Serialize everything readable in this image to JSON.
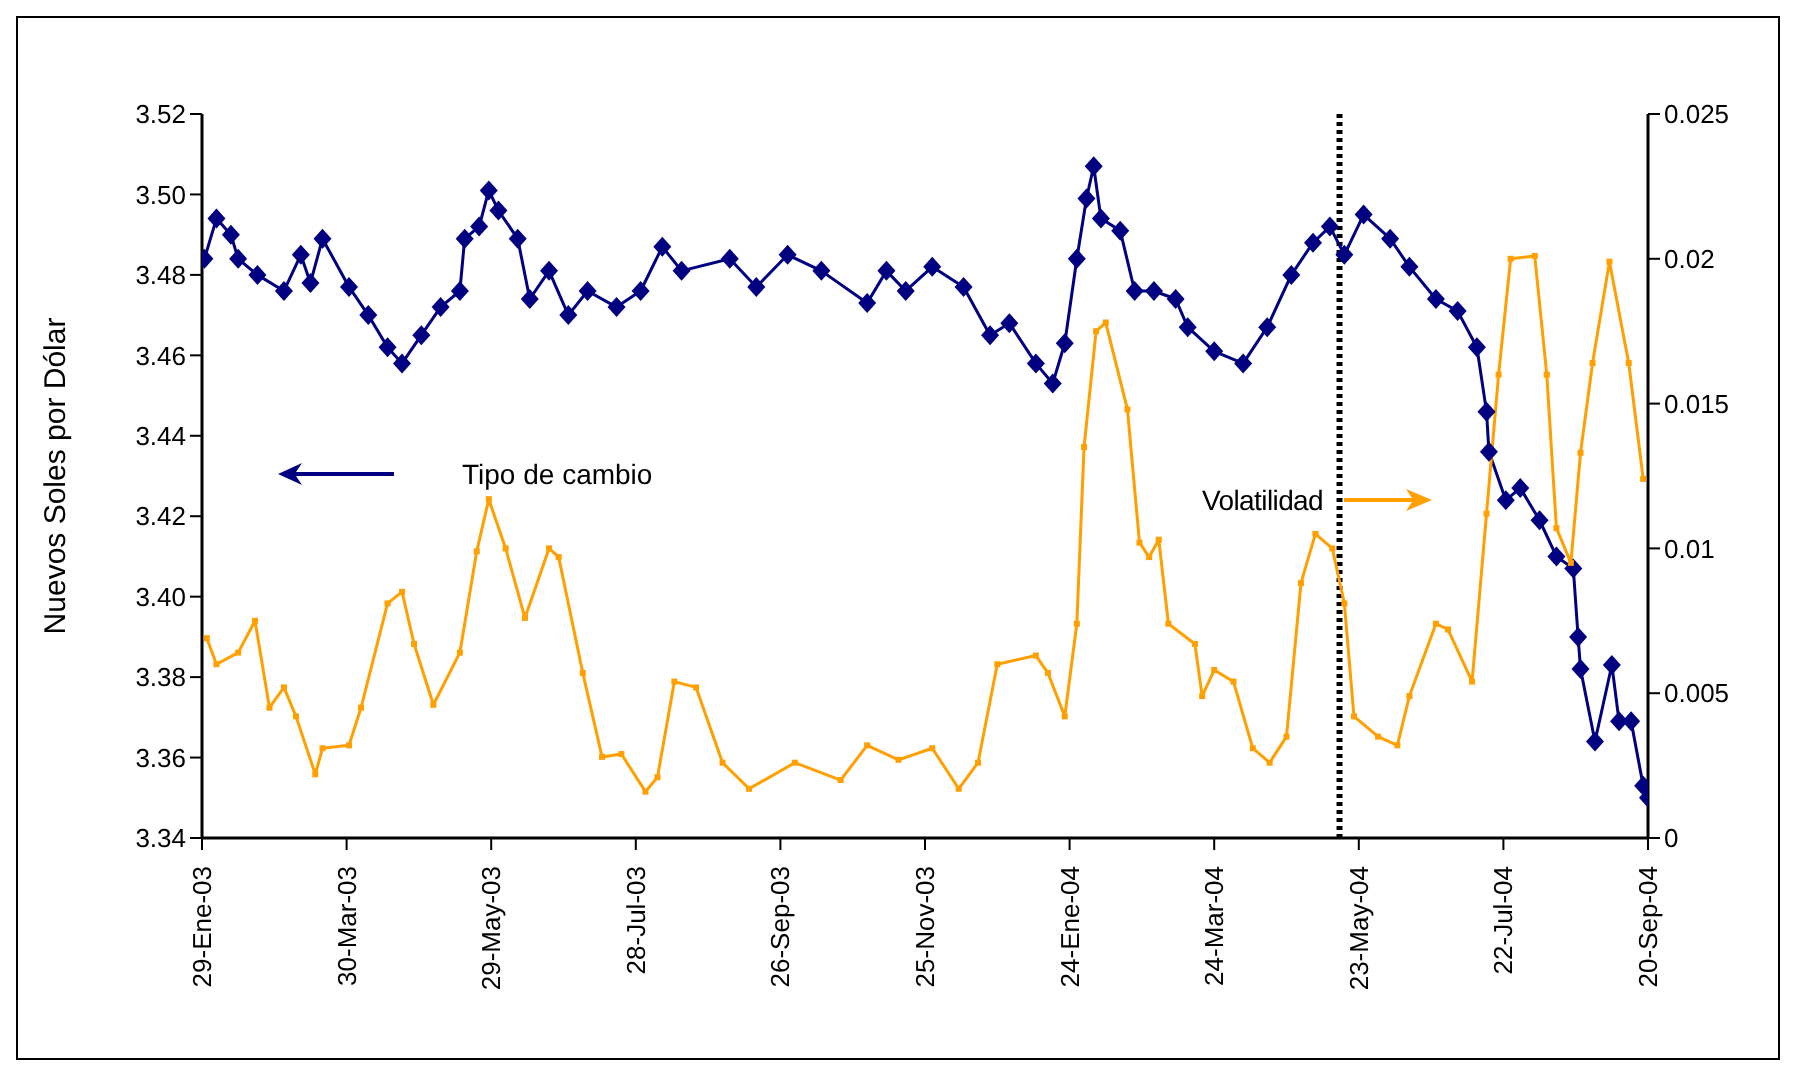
{
  "chart_data": {
    "type": "line",
    "ylabel": "Nuevos Soles por Dólar",
    "xlim": [
      "2003-01-29",
      "2004-09-20"
    ],
    "xticks": [
      {
        "value": "2003-01-29",
        "label": "29-Ene-03"
      },
      {
        "value": "2003-03-30",
        "label": "30-Mar-03"
      },
      {
        "value": "2003-05-29",
        "label": "29-May-03"
      },
      {
        "value": "2003-07-28",
        "label": "28-Jul-03"
      },
      {
        "value": "2003-09-26",
        "label": "26-Sep-03"
      },
      {
        "value": "2003-11-25",
        "label": "25-Nov-03"
      },
      {
        "value": "2004-01-24",
        "label": "24-Ene-04"
      },
      {
        "value": "2004-03-24",
        "label": "24-Mar-04"
      },
      {
        "value": "2004-05-23",
        "label": "23-May-04"
      },
      {
        "value": "2004-07-22",
        "label": "22-Jul-04"
      },
      {
        "value": "2004-09-20",
        "label": "20-Sep-04"
      }
    ],
    "ylim": [
      3.34,
      3.52
    ],
    "yticks": [
      3.34,
      3.36,
      3.38,
      {
        "value": 3.4,
        "label": "3.40"
      },
      3.42,
      3.44,
      3.46,
      3.48,
      {
        "value": 3.5,
        "label": "3.50"
      },
      3.52
    ],
    "y2lim": [
      0,
      0.025
    ],
    "y2ticks": [
      0,
      0.005,
      0.01,
      0.015,
      0.02,
      0.025
    ],
    "grid": false,
    "legend": false,
    "line_style": "solid",
    "series": [
      {
        "color": "#000080",
        "marker": "diamond",
        "x": [
          "2003-01-30",
          "2003-02-04",
          "2003-02-10",
          "2003-02-13",
          "2003-02-21",
          "2003-03-04",
          "2003-03-11",
          "2003-03-15",
          "2003-03-20",
          "2003-03-31",
          "2003-04-08",
          "2003-04-16",
          "2003-04-22",
          "2003-04-30",
          "2003-05-08",
          "2003-05-16",
          "2003-05-18",
          "2003-05-24",
          "2003-05-28",
          "2003-06-01",
          "2003-06-09",
          "2003-06-14",
          "2003-06-22",
          "2003-06-30",
          "2003-07-08",
          "2003-07-20",
          "2003-07-30",
          "2003-08-08",
          "2003-08-16",
          "2003-09-05",
          "2003-09-16",
          "2003-09-29",
          "2003-10-13",
          "2003-11-01",
          "2003-11-09",
          "2003-11-17",
          "2003-11-28",
          "2003-12-11",
          "2003-12-22",
          "2003-12-30",
          "2004-01-10",
          "2004-01-17",
          "2004-01-22",
          "2004-01-27",
          "2004-01-31",
          "2004-02-03",
          "2004-02-06",
          "2004-02-14",
          "2004-02-20",
          "2004-02-28",
          "2004-03-08",
          "2004-03-13",
          "2004-03-24",
          "2004-04-05",
          "2004-04-15",
          "2004-04-25",
          "2004-05-04",
          "2004-05-11",
          "2004-05-17",
          "2004-05-25",
          "2004-06-05",
          "2004-06-13",
          "2004-06-24",
          "2004-07-03",
          "2004-07-11",
          "2004-07-15",
          "2004-07-16",
          "2004-07-23",
          "2004-07-29",
          "2004-08-06",
          "2004-08-13",
          "2004-08-20",
          "2004-08-22",
          "2004-08-23",
          "2004-08-29",
          "2004-09-05",
          "2004-09-08",
          "2004-09-13",
          "2004-09-18",
          "2004-09-20"
        ],
        "values": [
          3.484,
          3.494,
          3.49,
          3.484,
          3.48,
          3.476,
          3.485,
          3.478,
          3.489,
          3.477,
          3.47,
          3.462,
          3.458,
          3.465,
          3.472,
          3.476,
          3.489,
          3.492,
          3.501,
          3.496,
          3.489,
          3.474,
          3.481,
          3.47,
          3.476,
          3.472,
          3.476,
          3.487,
          3.481,
          3.484,
          3.477,
          3.485,
          3.481,
          3.473,
          3.481,
          3.476,
          3.482,
          3.477,
          3.465,
          3.468,
          3.458,
          3.453,
          3.463,
          3.484,
          3.499,
          3.507,
          3.494,
          3.491,
          3.476,
          3.476,
          3.474,
          3.467,
          3.461,
          3.458,
          3.467,
          3.48,
          3.488,
          3.492,
          3.485,
          3.495,
          3.489,
          3.482,
          3.474,
          3.471,
          3.462,
          3.446,
          3.436,
          3.424,
          3.427,
          3.419,
          3.41,
          3.407,
          3.39,
          3.382,
          3.364,
          3.383,
          3.369,
          3.369,
          3.353,
          3.35
        ]
      },
      {
        "color": "#ffa000",
        "marker": "square",
        "axis": "y2",
        "x": [
          "2003-01-31",
          "2003-02-04",
          "2003-02-13",
          "2003-02-20",
          "2003-02-26",
          "2003-03-04",
          "2003-03-09",
          "2003-03-17",
          "2003-03-20",
          "2003-03-31",
          "2003-04-05",
          "2003-04-16",
          "2003-04-22",
          "2003-04-27",
          "2003-05-05",
          "2003-05-16",
          "2003-05-23",
          "2003-05-28",
          "2003-06-04",
          "2003-06-12",
          "2003-06-22",
          "2003-06-26",
          "2003-07-06",
          "2003-07-14",
          "2003-07-22",
          "2003-08-01",
          "2003-08-06",
          "2003-08-13",
          "2003-08-22",
          "2003-09-02",
          "2003-09-13",
          "2003-10-02",
          "2003-10-21",
          "2003-11-01",
          "2003-11-14",
          "2003-11-28",
          "2003-12-09",
          "2003-12-17",
          "2003-12-25",
          "2004-01-10",
          "2004-01-15",
          "2004-01-22",
          "2004-01-27",
          "2004-01-30",
          "2004-02-04",
          "2004-02-08",
          "2004-02-17",
          "2004-02-22",
          "2004-02-26",
          "2004-03-01",
          "2004-03-05",
          "2004-03-16",
          "2004-03-19",
          "2004-03-24",
          "2004-04-01",
          "2004-04-09",
          "2004-04-16",
          "2004-04-23",
          "2004-04-29",
          "2004-05-05",
          "2004-05-12",
          "2004-05-17",
          "2004-05-21",
          "2004-05-31",
          "2004-06-08",
          "2004-06-13",
          "2004-06-24",
          "2004-06-29",
          "2004-07-09",
          "2004-07-15",
          "2004-07-20",
          "2004-07-25",
          "2004-08-04",
          "2004-08-09",
          "2004-08-13",
          "2004-08-19",
          "2004-08-23",
          "2004-08-28",
          "2004-09-04",
          "2004-09-12",
          "2004-09-18"
        ],
        "values": [
          0.0069,
          0.006,
          0.0064,
          0.0075,
          0.0045,
          0.0052,
          0.0042,
          0.0022,
          0.0031,
          0.0032,
          0.0045,
          0.0081,
          0.0085,
          0.0067,
          0.0046,
          0.0064,
          0.0099,
          0.0117,
          0.01,
          0.0076,
          0.01,
          0.0097,
          0.0057,
          0.0028,
          0.0029,
          0.0016,
          0.0021,
          0.0054,
          0.0052,
          0.0026,
          0.0017,
          0.0026,
          0.002,
          0.0032,
          0.0027,
          0.0031,
          0.0017,
          0.0026,
          0.006,
          0.0063,
          0.0057,
          0.0042,
          0.0074,
          0.0135,
          0.0175,
          0.0178,
          0.0148,
          0.0102,
          0.0097,
          0.0103,
          0.0074,
          0.0067,
          0.0049,
          0.0058,
          0.0054,
          0.0031,
          0.0026,
          0.0035,
          0.0088,
          0.0105,
          0.01,
          0.0081,
          0.0042,
          0.0035,
          0.0032,
          0.0049,
          0.0074,
          0.0072,
          0.0054,
          0.0112,
          0.016,
          0.02,
          0.0201,
          0.016,
          0.0107,
          0.0095,
          0.0133,
          0.0164,
          0.0199,
          0.0164,
          0.0124
        ]
      }
    ],
    "ref_lines": [
      {
        "axis": "x",
        "value": "2004-05-15",
        "color": "#000000",
        "line_style": "dotted"
      }
    ],
    "annotations": [
      "Tipo de cambio",
      "Volatilidad"
    ]
  }
}
